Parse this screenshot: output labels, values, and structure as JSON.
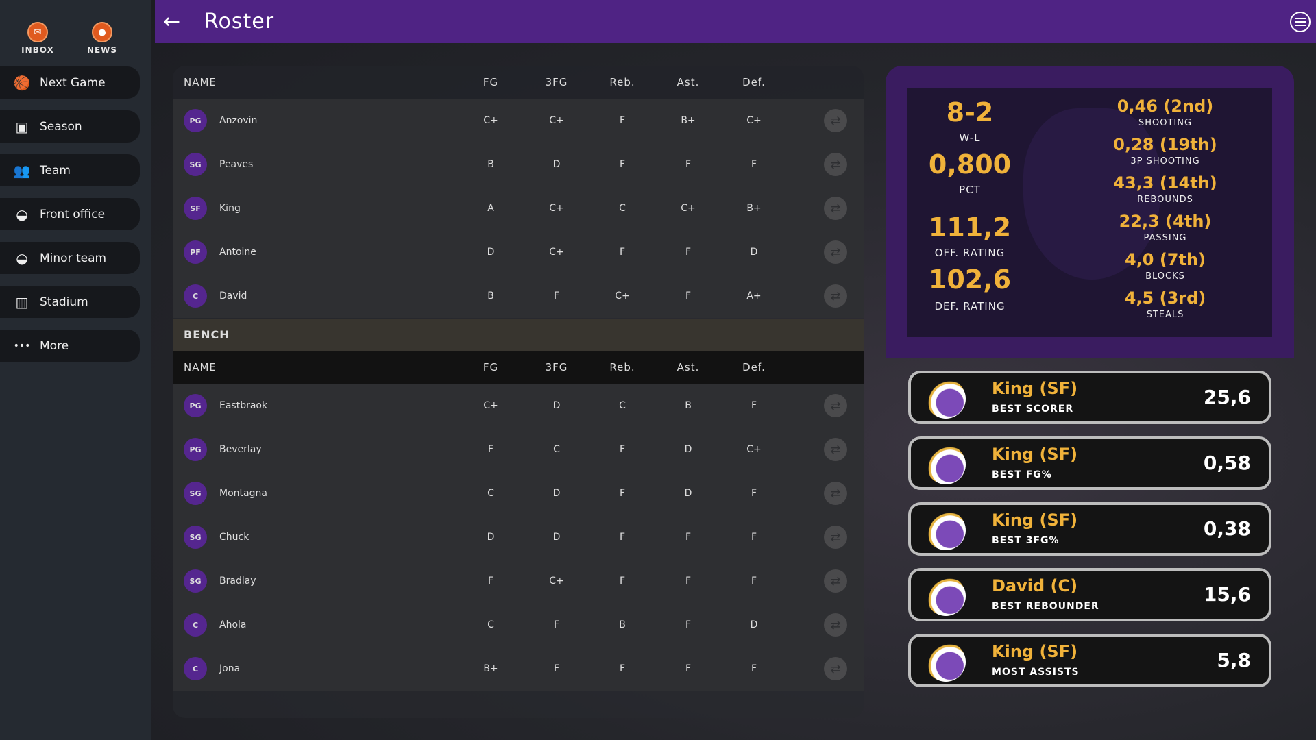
{
  "sidebar": {
    "inbox": "INBOX",
    "news": "NEWS",
    "items": [
      {
        "label": "Next Game",
        "icon": "basketball-icon"
      },
      {
        "label": "Season",
        "icon": "ticket-icon"
      },
      {
        "label": "Team",
        "icon": "people-icon"
      },
      {
        "label": "Front office",
        "icon": "cap-icon"
      },
      {
        "label": "Minor team",
        "icon": "cap-icon"
      },
      {
        "label": "Stadium",
        "icon": "stadium-icon"
      },
      {
        "label": "More",
        "icon": "dots-icon"
      }
    ]
  },
  "header": {
    "title": "Roster"
  },
  "columns": [
    "NAME",
    "FG",
    "3FG",
    "Reb.",
    "Ast.",
    "Def."
  ],
  "starters": [
    {
      "pos": "PG",
      "name": "Anzovin",
      "g": [
        "C+",
        "C+",
        "F",
        "B+",
        "C+"
      ]
    },
    {
      "pos": "SG",
      "name": "Peaves",
      "g": [
        "B",
        "D",
        "F",
        "F",
        "F"
      ]
    },
    {
      "pos": "SF",
      "name": "King",
      "g": [
        "A",
        "C+",
        "C",
        "C+",
        "B+"
      ]
    },
    {
      "pos": "PF",
      "name": "Antoine",
      "g": [
        "D",
        "C+",
        "F",
        "F",
        "D"
      ]
    },
    {
      "pos": "C",
      "name": "David",
      "g": [
        "B",
        "F",
        "C+",
        "F",
        "A+"
      ]
    }
  ],
  "bench_label": "BENCH",
  "bench": [
    {
      "pos": "PG",
      "name": "Eastbraok",
      "g": [
        "C+",
        "D",
        "C",
        "B",
        "F"
      ]
    },
    {
      "pos": "PG",
      "name": "Beverlay",
      "g": [
        "F",
        "C",
        "F",
        "D",
        "C+"
      ]
    },
    {
      "pos": "SG",
      "name": "Montagna",
      "g": [
        "C",
        "D",
        "F",
        "D",
        "F"
      ]
    },
    {
      "pos": "SG",
      "name": "Chuck",
      "g": [
        "D",
        "D",
        "F",
        "F",
        "F"
      ]
    },
    {
      "pos": "SG",
      "name": "Bradlay",
      "g": [
        "F",
        "C+",
        "F",
        "F",
        "F"
      ]
    },
    {
      "pos": "C",
      "name": "Ahola",
      "g": [
        "C",
        "F",
        "B",
        "F",
        "D"
      ]
    },
    {
      "pos": "C",
      "name": "Jona",
      "g": [
        "B+",
        "F",
        "F",
        "F",
        "F"
      ]
    }
  ],
  "team_stats": {
    "left": [
      {
        "value": "8-2",
        "label": "W-L"
      },
      {
        "value": "0,800",
        "label": "PCT"
      },
      {
        "value": "111,2",
        "label": "OFF. RATING"
      },
      {
        "value": "102,6",
        "label": "DEF. RATING"
      }
    ],
    "right": [
      {
        "value": "0,46 (2nd)",
        "label": "SHOOTING"
      },
      {
        "value": "0,28 (19th)",
        "label": "3P SHOOTING"
      },
      {
        "value": "43,3 (14th)",
        "label": "REBOUNDS"
      },
      {
        "value": "22,3 (4th)",
        "label": "PASSING"
      },
      {
        "value": "4,0 (7th)",
        "label": "BLOCKS"
      },
      {
        "value": "4,5 (3rd)",
        "label": "STEALS"
      }
    ]
  },
  "leaders": [
    {
      "name": "King (SF)",
      "label": "BEST SCORER",
      "value": "25,6"
    },
    {
      "name": "King (SF)",
      "label": "BEST FG%",
      "value": "0,58"
    },
    {
      "name": "King (SF)",
      "label": "BEST 3FG%",
      "value": "0,38"
    },
    {
      "name": "David (C)",
      "label": "BEST REBOUNDER",
      "value": "15,6"
    },
    {
      "name": "King (SF)",
      "label": "MOST ASSISTS",
      "value": "5,8"
    }
  ],
  "colors": {
    "header": "#4f2384",
    "accent": "#f0b23a",
    "position_badge": "#55268f"
  }
}
